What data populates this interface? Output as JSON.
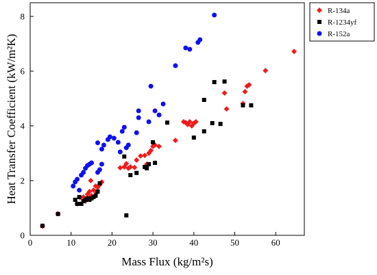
{
  "chart_data": {
    "type": "scatter",
    "xlabel": "Mass Flux (kg/m²s)",
    "ylabel": "Heat Transfer Coefficient (kW/m²K)",
    "xlim": [
      0,
      67
    ],
    "ylim": [
      0,
      8.5
    ],
    "xticks": [
      0,
      10,
      20,
      30,
      40,
      50,
      60
    ],
    "yticks": [
      0,
      2,
      4,
      6,
      8
    ],
    "grid": false,
    "legend_position": "top-right",
    "series": [
      {
        "name": "R-134a",
        "color": "#ee1c1c",
        "marker": "diamond",
        "points": [
          [
            3.0,
            0.33
          ],
          [
            6.8,
            0.79
          ],
          [
            11.5,
            1.15
          ],
          [
            12.2,
            1.38
          ],
          [
            13.0,
            1.4
          ],
          [
            13.5,
            1.25
          ],
          [
            14.0,
            1.5
          ],
          [
            14.5,
            1.6
          ],
          [
            15.0,
            1.45
          ],
          [
            15.5,
            1.65
          ],
          [
            16.0,
            1.8
          ],
          [
            16.2,
            1.55
          ],
          [
            16.5,
            1.75
          ],
          [
            17.0,
            1.85
          ],
          [
            17.5,
            1.95
          ],
          [
            14.8,
            2.0
          ],
          [
            22.0,
            2.47
          ],
          [
            23.0,
            2.5
          ],
          [
            23.5,
            2.62
          ],
          [
            24.0,
            2.45
          ],
          [
            24.5,
            2.5
          ],
          [
            25.5,
            2.48
          ],
          [
            26.0,
            2.75
          ],
          [
            27.0,
            2.9
          ],
          [
            28.0,
            2.92
          ],
          [
            28.5,
            2.6
          ],
          [
            29.0,
            3.0
          ],
          [
            29.5,
            3.1
          ],
          [
            30.0,
            3.25
          ],
          [
            30.5,
            3.3
          ],
          [
            31.5,
            3.25
          ],
          [
            35.5,
            3.47
          ],
          [
            37.5,
            4.15
          ],
          [
            38.0,
            4.12
          ],
          [
            38.5,
            4.05
          ],
          [
            39.0,
            4.15
          ],
          [
            39.5,
            4.0
          ],
          [
            40.0,
            4.1
          ],
          [
            40.5,
            4.15
          ],
          [
            47.5,
            5.2
          ],
          [
            48.0,
            4.62
          ],
          [
            52.0,
            4.82
          ],
          [
            52.5,
            5.25
          ],
          [
            53.0,
            5.45
          ],
          [
            53.5,
            5.5
          ],
          [
            57.5,
            6.02
          ],
          [
            64.5,
            6.72
          ]
        ]
      },
      {
        "name": "R-1234yf",
        "color": "#000000",
        "marker": "square",
        "points": [
          [
            3.0,
            0.35
          ],
          [
            6.8,
            0.78
          ],
          [
            11.0,
            1.3
          ],
          [
            11.5,
            1.15
          ],
          [
            12.0,
            1.4
          ],
          [
            12.5,
            1.15
          ],
          [
            13.0,
            1.25
          ],
          [
            13.5,
            1.3
          ],
          [
            14.0,
            1.35
          ],
          [
            14.5,
            1.3
          ],
          [
            15.0,
            1.35
          ],
          [
            15.5,
            1.4
          ],
          [
            16.0,
            1.45
          ],
          [
            16.5,
            1.6
          ],
          [
            17.0,
            1.9
          ],
          [
            23.5,
            0.73
          ],
          [
            23.0,
            2.88
          ],
          [
            24.5,
            2.2
          ],
          [
            26.0,
            2.28
          ],
          [
            28.0,
            2.5
          ],
          [
            28.5,
            2.45
          ],
          [
            29.0,
            2.6
          ],
          [
            30.0,
            3.4
          ],
          [
            30.5,
            2.65
          ],
          [
            33.5,
            4.12
          ],
          [
            40.0,
            3.57
          ],
          [
            42.5,
            3.8
          ],
          [
            42.5,
            4.95
          ],
          [
            44.5,
            4.1
          ],
          [
            45.0,
            5.6
          ],
          [
            46.5,
            4.07
          ],
          [
            47.5,
            5.62
          ],
          [
            52.0,
            4.75
          ],
          [
            54.0,
            4.75
          ]
        ]
      },
      {
        "name": "R-152a",
        "color": "#1010ee",
        "marker": "circle",
        "points": [
          [
            10.5,
            1.8
          ],
          [
            11.0,
            1.95
          ],
          [
            11.5,
            2.05
          ],
          [
            12.0,
            1.65
          ],
          [
            12.5,
            2.2
          ],
          [
            13.0,
            2.3
          ],
          [
            13.5,
            2.45
          ],
          [
            14.0,
            2.55
          ],
          [
            14.5,
            2.6
          ],
          [
            15.0,
            2.65
          ],
          [
            16.5,
            2.3
          ],
          [
            17.0,
            2.4
          ],
          [
            17.5,
            2.6
          ],
          [
            16.5,
            3.38
          ],
          [
            17.5,
            3.15
          ],
          [
            18.0,
            3.3
          ],
          [
            19.0,
            3.5
          ],
          [
            19.5,
            3.6
          ],
          [
            20.5,
            3.55
          ],
          [
            21.5,
            3.4
          ],
          [
            22.0,
            3.05
          ],
          [
            22.5,
            3.8
          ],
          [
            23.0,
            3.95
          ],
          [
            23.5,
            3.2
          ],
          [
            24.0,
            3.3
          ],
          [
            26.0,
            3.75
          ],
          [
            26.5,
            4.3
          ],
          [
            26.5,
            4.55
          ],
          [
            29.0,
            4.15
          ],
          [
            29.5,
            5.45
          ],
          [
            30.5,
            4.55
          ],
          [
            31.5,
            4.4
          ],
          [
            32.5,
            4.8
          ],
          [
            35.5,
            6.2
          ],
          [
            38.0,
            6.85
          ],
          [
            39.0,
            6.8
          ],
          [
            41.0,
            7.05
          ],
          [
            41.5,
            7.15
          ],
          [
            45.0,
            8.05
          ]
        ]
      }
    ]
  }
}
